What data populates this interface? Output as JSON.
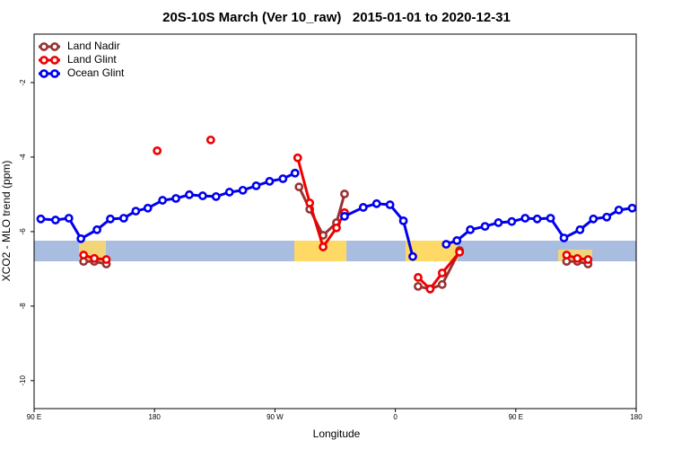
{
  "chart_data": {
    "type": "line",
    "title": "20S-10S March (Ver 10_raw)   2015-01-01 to 2020-12-31",
    "x_label": "Longitude",
    "y_label": "XCO2 - MLO trend (ppm)",
    "xlim": [
      90,
      540
    ],
    "ylim": [
      -10.75,
      -0.7
    ],
    "xticks": [
      {
        "value": 90,
        "label": "90 E"
      },
      {
        "value": 180,
        "label": "180"
      },
      {
        "value": 270,
        "label": "90 W"
      },
      {
        "value": 360,
        "label": "0"
      },
      {
        "value": 450,
        "label": "90 E"
      },
      {
        "value": 540,
        "label": "180"
      }
    ],
    "yticks": [
      -2,
      -4,
      -6,
      -8,
      -10
    ],
    "grid": false,
    "legend": "top-left",
    "series": [
      {
        "name": "Land Nadir",
        "color": "#993333",
        "x": [
          127,
          135,
          144,
          null,
          288,
          296,
          306,
          316,
          322,
          null,
          377,
          386,
          395,
          408,
          null,
          488,
          496,
          504
        ],
        "values": [
          -6.8,
          -6.8,
          -6.87,
          null,
          -4.8,
          -5.4,
          -6.1,
          -5.76,
          -4.99,
          null,
          -7.47,
          -7.54,
          -7.42,
          -6.51,
          null,
          -6.8,
          -6.8,
          -6.87
        ]
      },
      {
        "name": "Land Glint",
        "color": "#ee0000",
        "x": [
          127,
          135,
          144,
          null,
          182,
          null,
          222,
          null,
          287,
          296,
          306,
          316,
          322,
          null,
          377,
          386,
          395,
          408,
          null,
          488,
          496,
          504
        ],
        "values": [
          -6.63,
          -6.72,
          -6.75,
          null,
          -3.83,
          null,
          -3.54,
          null,
          -4.02,
          -5.23,
          -6.41,
          -5.9,
          -5.49,
          null,
          -7.23,
          -7.54,
          -7.11,
          -6.55,
          null,
          -6.63,
          -6.72,
          -6.75
        ]
      },
      {
        "name": "Ocean Glint",
        "color": "#0000ee",
        "x": [
          95,
          106,
          116,
          125,
          137,
          147,
          157,
          166,
          175,
          186,
          196,
          206,
          216,
          226,
          236,
          246,
          256,
          266,
          276,
          285,
          null,
          322,
          336,
          346,
          356,
          366,
          373,
          null,
          398,
          406,
          416,
          427,
          437,
          447,
          457,
          466,
          476,
          486,
          498,
          508,
          518,
          527,
          537
        ],
        "values": [
          -5.66,
          -5.69,
          -5.64,
          -6.19,
          -5.95,
          -5.66,
          -5.64,
          -5.45,
          -5.37,
          -5.16,
          -5.11,
          -5.01,
          -5.04,
          -5.06,
          -4.94,
          -4.89,
          -4.77,
          -4.65,
          -4.58,
          -4.43,
          null,
          -5.59,
          -5.35,
          -5.25,
          -5.28,
          -5.71,
          -6.67,
          null,
          -6.34,
          -6.24,
          -5.95,
          -5.86,
          -5.76,
          -5.73,
          -5.64,
          -5.66,
          -5.64,
          -6.17,
          -5.95,
          -5.66,
          -5.61,
          -5.42,
          -5.37
        ]
      }
    ]
  }
}
